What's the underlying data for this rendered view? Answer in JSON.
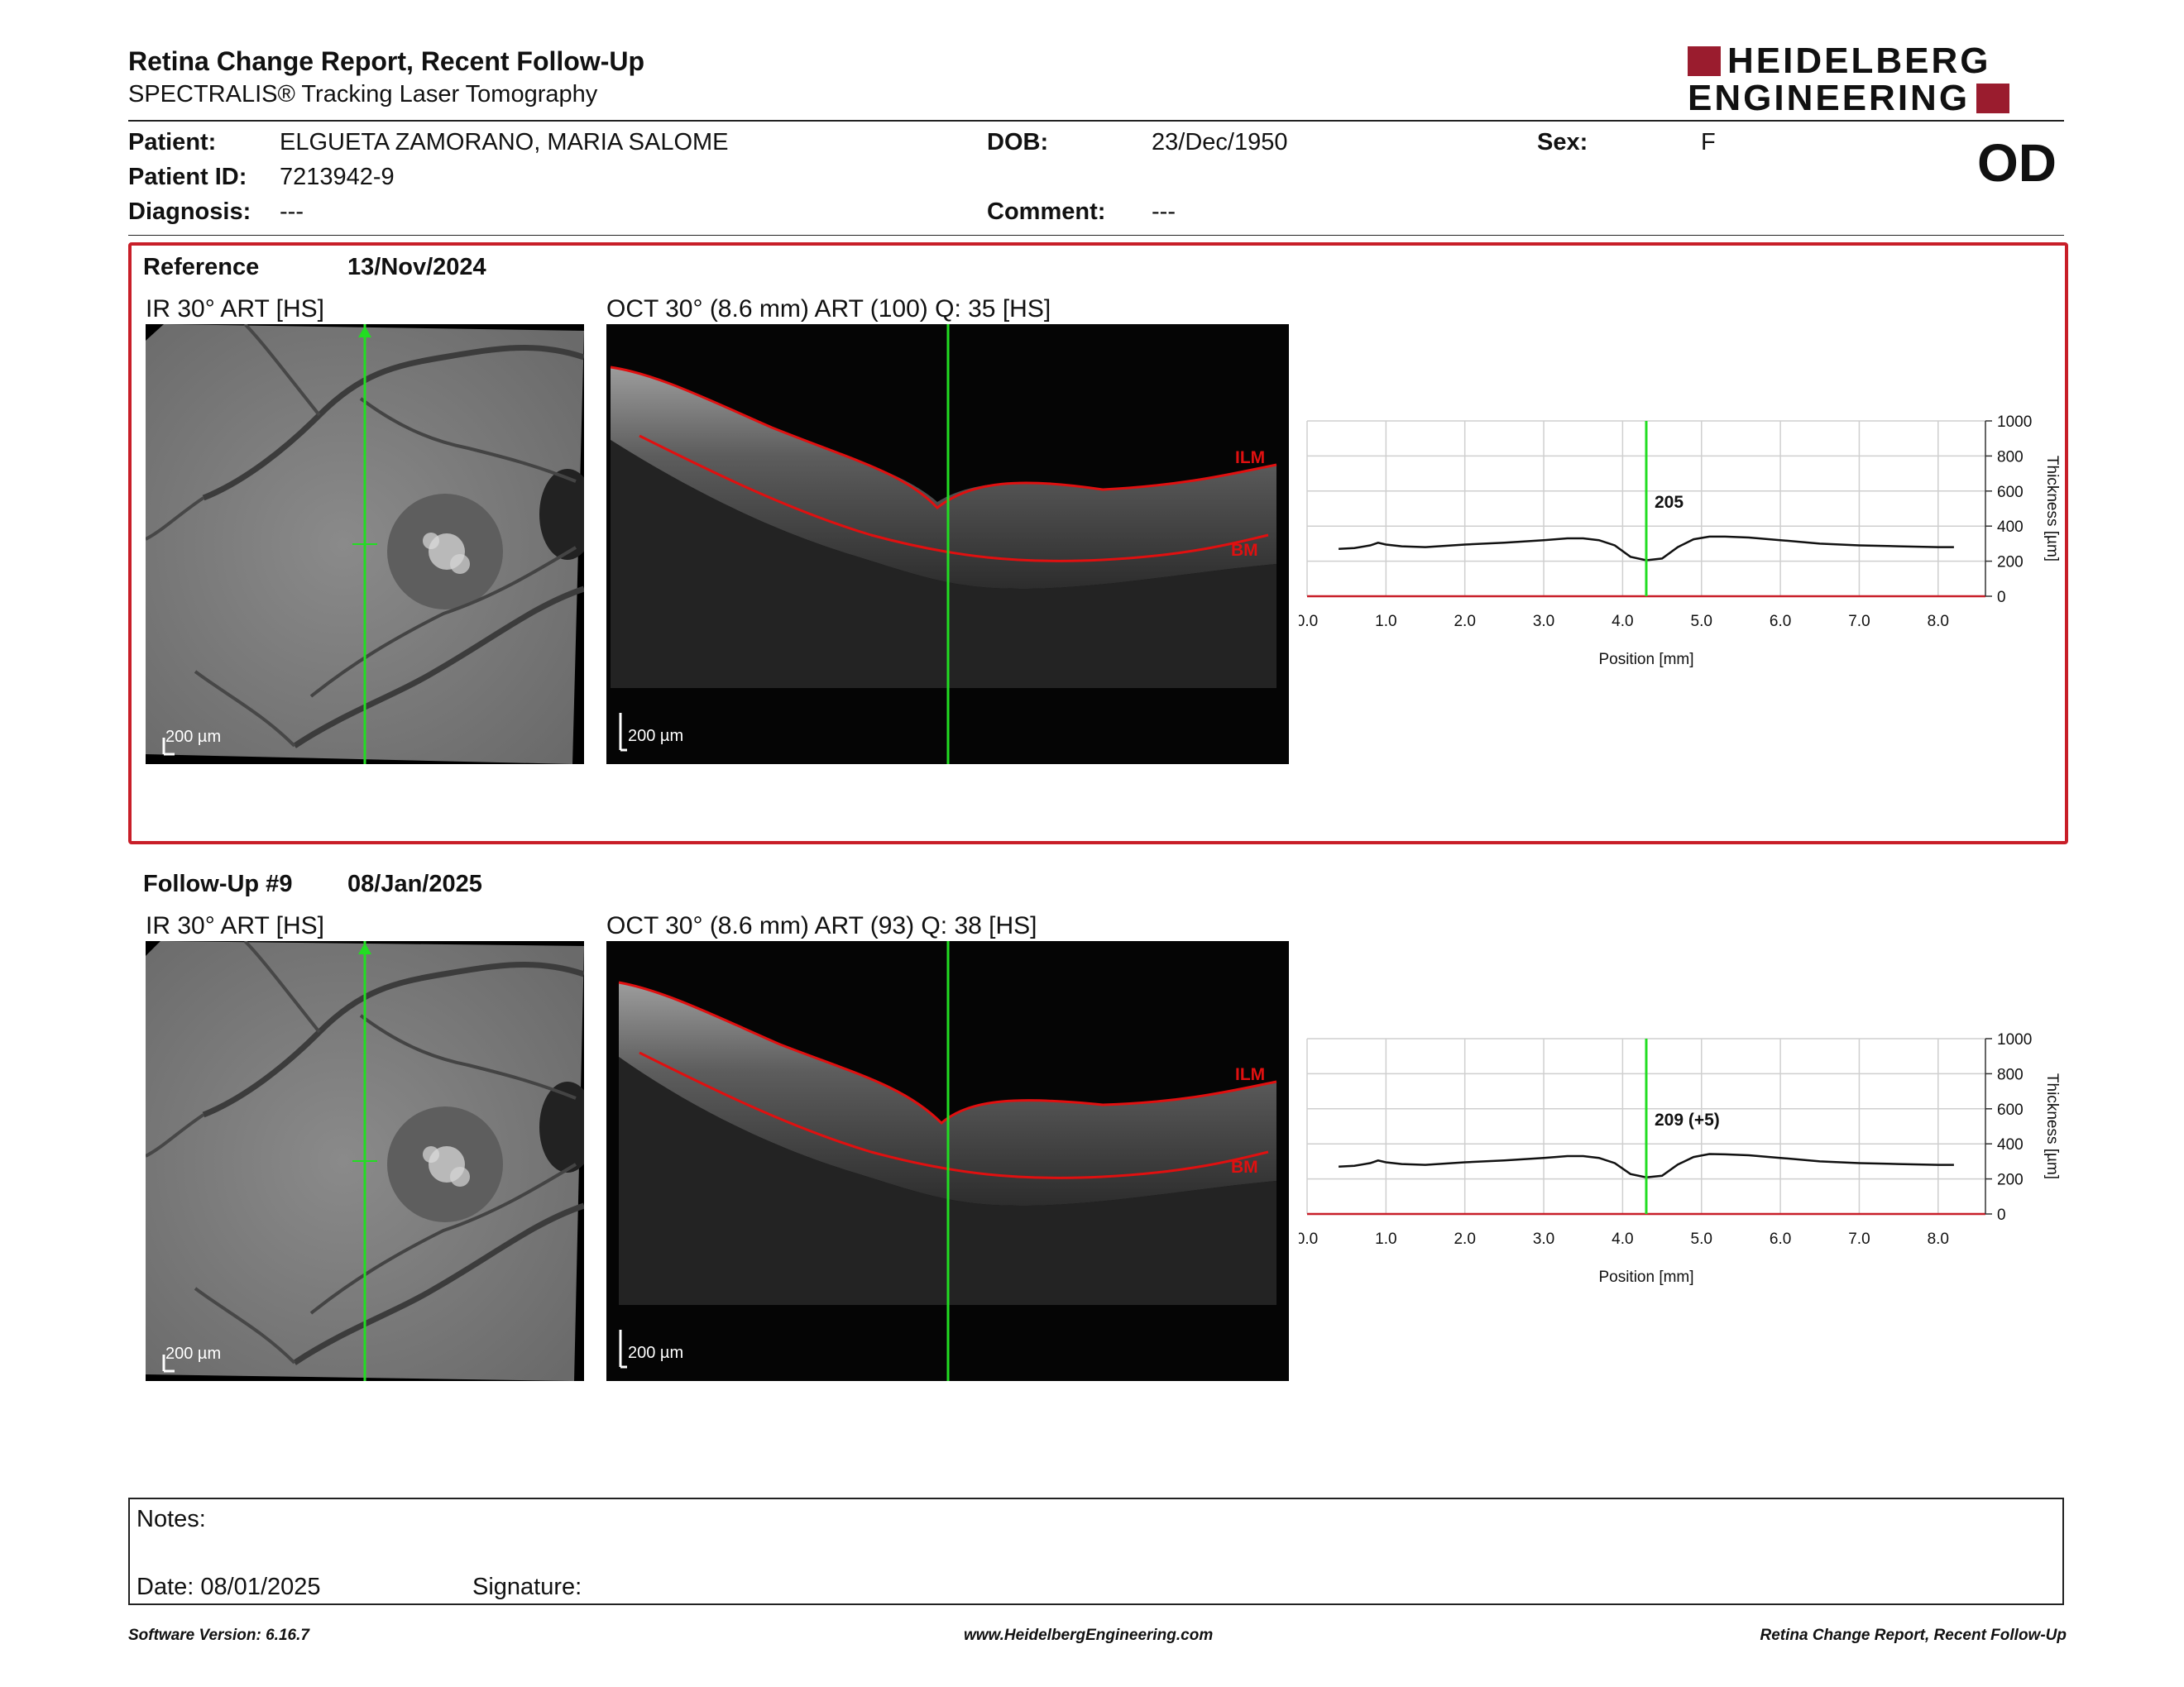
{
  "header": {
    "title": "Retina Change Report, Recent Follow-Up",
    "subtitle": "SPECTRALIS® Tracking Laser Tomography",
    "logo_line1": "HEIDELBERG",
    "logo_line2": "ENGINEERING",
    "eye": "OD"
  },
  "patient": {
    "patient_label": "Patient:",
    "patient_value": "ELGUETA ZAMORANO, MARIA SALOME",
    "dob_label": "DOB:",
    "dob_value": "23/Dec/1950",
    "sex_label": "Sex:",
    "sex_value": "F",
    "id_label": "Patient ID:",
    "id_value": "7213942-9",
    "diagnosis_label": "Diagnosis:",
    "diagnosis_value": "---",
    "comment_label": "Comment:",
    "comment_value": "---"
  },
  "reference": {
    "label": "Reference",
    "date": "13/Nov/2024",
    "ir_label": "IR 30° ART [HS]",
    "oct_label": "OCT 30° (8.6 mm) ART (100) Q: 35 [HS]",
    "scale_ir": "200 µm",
    "scale_oct": "200 µm",
    "ilm": "ILM",
    "bm": "BM",
    "thickness_label": "205"
  },
  "followup": {
    "label": "Follow-Up #9",
    "date": "08/Jan/2025",
    "ir_label": "IR 30° ART [HS]",
    "oct_label": "OCT 30° (8.6 mm) ART (93) Q: 38 [HS]",
    "scale_ir": "200 µm",
    "scale_oct": "200 µm",
    "ilm": "ILM",
    "bm": "BM",
    "thickness_label": "209 (+5)"
  },
  "chart_data": [
    {
      "type": "line",
      "xlabel": "Position [mm]",
      "ylabel": "Thickness [µm]",
      "xlim": [
        0,
        8.6
      ],
      "ylim": [
        0,
        1000
      ],
      "xticks": [
        "0.0",
        "1.0",
        "2.0",
        "3.0",
        "4.0",
        "5.0",
        "6.0",
        "7.0",
        "8.0"
      ],
      "yticks": [
        "0",
        "200",
        "400",
        "600",
        "800",
        "1000"
      ],
      "marker_x": 4.3,
      "marker_label": "205",
      "x": [
        0.4,
        0.6,
        0.8,
        0.9,
        1.0,
        1.2,
        1.5,
        2.0,
        2.5,
        3.0,
        3.3,
        3.5,
        3.7,
        3.9,
        4.1,
        4.3,
        4.5,
        4.7,
        4.9,
        5.1,
        5.3,
        5.6,
        6.0,
        6.5,
        7.0,
        7.5,
        8.0,
        8.2
      ],
      "y": [
        270,
        275,
        290,
        305,
        295,
        285,
        280,
        295,
        305,
        320,
        330,
        330,
        320,
        290,
        225,
        205,
        215,
        280,
        325,
        340,
        340,
        335,
        320,
        300,
        290,
        285,
        280,
        280
      ]
    },
    {
      "type": "line",
      "xlabel": "Position [mm]",
      "ylabel": "Thickness [µm]",
      "xlim": [
        0,
        8.6
      ],
      "ylim": [
        0,
        1000
      ],
      "xticks": [
        "0.0",
        "1.0",
        "2.0",
        "3.0",
        "4.0",
        "5.0",
        "6.0",
        "7.0",
        "8.0"
      ],
      "yticks": [
        "0",
        "200",
        "400",
        "600",
        "800",
        "1000"
      ],
      "marker_x": 4.3,
      "marker_label": "209 (+5)",
      "x": [
        0.4,
        0.6,
        0.8,
        0.9,
        1.0,
        1.2,
        1.5,
        2.0,
        2.5,
        3.0,
        3.3,
        3.5,
        3.7,
        3.9,
        4.1,
        4.3,
        4.5,
        4.7,
        4.9,
        5.1,
        5.3,
        5.6,
        6.0,
        6.5,
        7.0,
        7.5,
        8.0,
        8.2
      ],
      "y": [
        270,
        275,
        290,
        305,
        295,
        285,
        280,
        295,
        305,
        320,
        330,
        330,
        320,
        290,
        228,
        209,
        218,
        282,
        325,
        342,
        340,
        335,
        320,
        300,
        290,
        285,
        280,
        280
      ]
    }
  ],
  "notes": {
    "notes_label": "Notes:",
    "date_label": "Date: 08/01/2025",
    "signature_label": "Signature:"
  },
  "footer": {
    "software": "Software Version: 6.16.7",
    "website": "www.HeidelbergEngineering.com",
    "report": "Retina Change Report, Recent Follow-Up"
  },
  "colors": {
    "accent_red": "#c81e28",
    "logo_red": "#9a1c2e",
    "marker_green": "#22dd22",
    "segmentation_red": "#e01010"
  }
}
